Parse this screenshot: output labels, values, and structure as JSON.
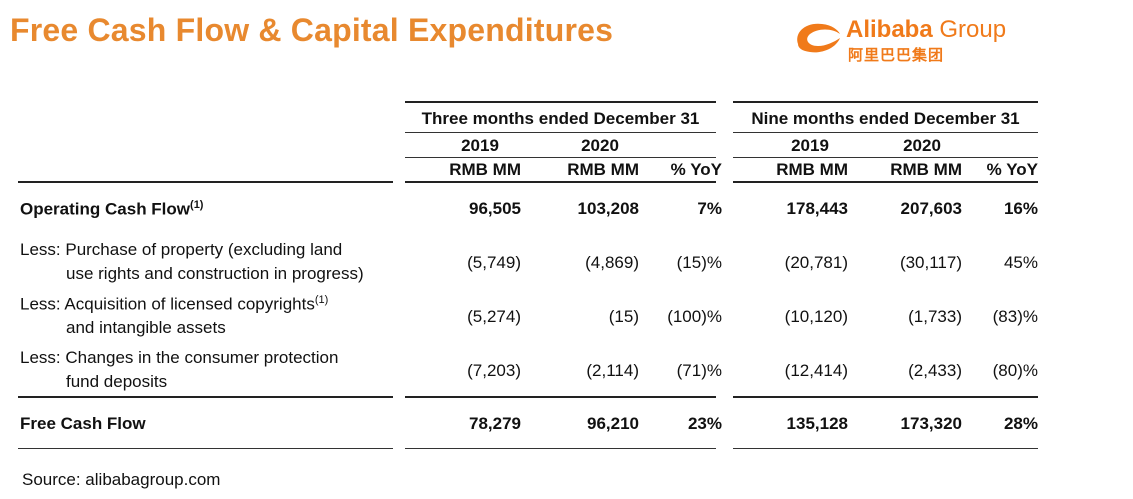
{
  "title": "Free Cash Flow & Capital Expenditures",
  "logo": {
    "name_bold": "Alibaba",
    "name_light": "Group",
    "chinese": "阿里巴巴集团",
    "color": "#f07a1a"
  },
  "accent_color": "#e8892f",
  "table": {
    "group1": "Three months ended December 31",
    "group2": "Nine months ended December 31",
    "years": [
      "2019",
      "2020",
      "2019",
      "2020"
    ],
    "units": [
      "RMB MM",
      "RMB MM",
      "% YoY",
      "RMB MM",
      "RMB MM",
      "% YoY"
    ],
    "rows": [
      {
        "label_lines": [
          "Operating Cash Flow"
        ],
        "superscript": "(1)",
        "bold": true,
        "values": [
          "96,505",
          "103,208",
          "7%",
          "178,443",
          "207,603",
          "16%"
        ]
      },
      {
        "label_lines": [
          "Less: Purchase of property (excluding land",
          "use rights and construction in progress)"
        ],
        "superscript": "",
        "bold": false,
        "values": [
          "(5,749)",
          "(4,869)",
          "(15)%",
          "(20,781)",
          "(30,117)",
          "45%"
        ]
      },
      {
        "label_lines": [
          "Less: Acquisition of licensed copyrights",
          "and intangible assets"
        ],
        "superscript": "(1)",
        "bold": false,
        "values": [
          "(5,274)",
          "(15)",
          "(100)%",
          "(10,120)",
          "(1,733)",
          "(83)%"
        ]
      },
      {
        "label_lines": [
          "Less: Changes in the consumer protection",
          "fund deposits"
        ],
        "superscript": "",
        "bold": false,
        "values": [
          "(7,203)",
          "(2,114)",
          "(71)%",
          "(12,414)",
          "(2,433)",
          "(80)%"
        ]
      },
      {
        "label_lines": [
          "Free Cash Flow"
        ],
        "superscript": "",
        "bold": true,
        "values": [
          "78,279",
          "96,210",
          "23%",
          "135,128",
          "173,320",
          "28%"
        ]
      }
    ]
  },
  "source": "Source: alibabagroup.com"
}
